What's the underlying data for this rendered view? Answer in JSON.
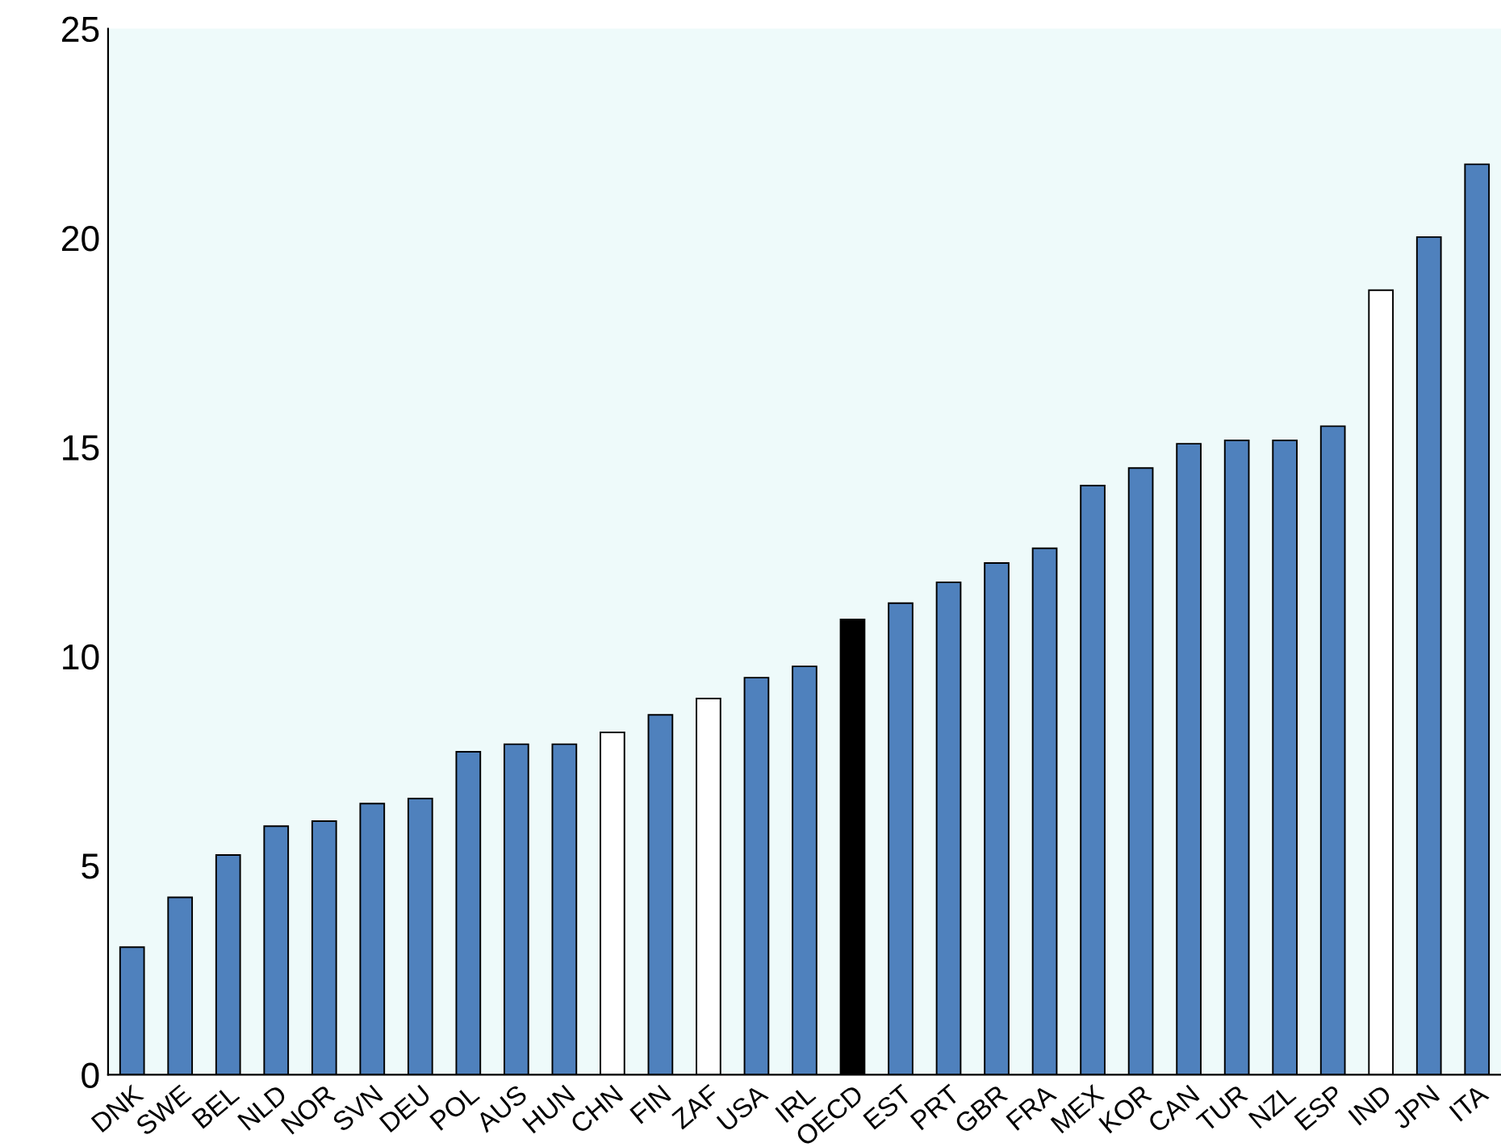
{
  "chart_data": {
    "type": "bar",
    "categories": [
      "DNK",
      "SWE",
      "BEL",
      "NLD",
      "NOR",
      "SVN",
      "DEU",
      "POL",
      "AUS",
      "HUN",
      "CHN",
      "FIN",
      "ZAF",
      "USA",
      "IRL",
      "OECD",
      "EST",
      "PRT",
      "GBR",
      "FRA",
      "MEX",
      "KOR",
      "CAN",
      "TUR",
      "NZL",
      "ESP",
      "IND",
      "JPN",
      "ITA"
    ],
    "values": [
      3.05,
      4.24,
      5.25,
      5.94,
      6.06,
      6.48,
      6.6,
      7.72,
      7.9,
      7.9,
      8.18,
      8.6,
      8.99,
      9.49,
      9.76,
      10.88,
      11.27,
      11.77,
      12.23,
      12.58,
      14.08,
      14.5,
      15.08,
      15.16,
      15.16,
      15.5,
      18.75,
      20.02,
      21.76
    ],
    "colors": [
      "#4f81bd",
      "#4f81bd",
      "#4f81bd",
      "#4f81bd",
      "#4f81bd",
      "#4f81bd",
      "#4f81bd",
      "#4f81bd",
      "#4f81bd",
      "#4f81bd",
      "#ffffff",
      "#4f81bd",
      "#ffffff",
      "#4f81bd",
      "#4f81bd",
      "#000000",
      "#4f81bd",
      "#4f81bd",
      "#4f81bd",
      "#4f81bd",
      "#4f81bd",
      "#4f81bd",
      "#4f81bd",
      "#4f81bd",
      "#4f81bd",
      "#4f81bd",
      "#ffffff",
      "#4f81bd",
      "#4f81bd"
    ],
    "ylim": [
      0,
      25
    ],
    "yticks": [
      0,
      5,
      10,
      15,
      20,
      25
    ],
    "grid": false,
    "legend": false
  }
}
